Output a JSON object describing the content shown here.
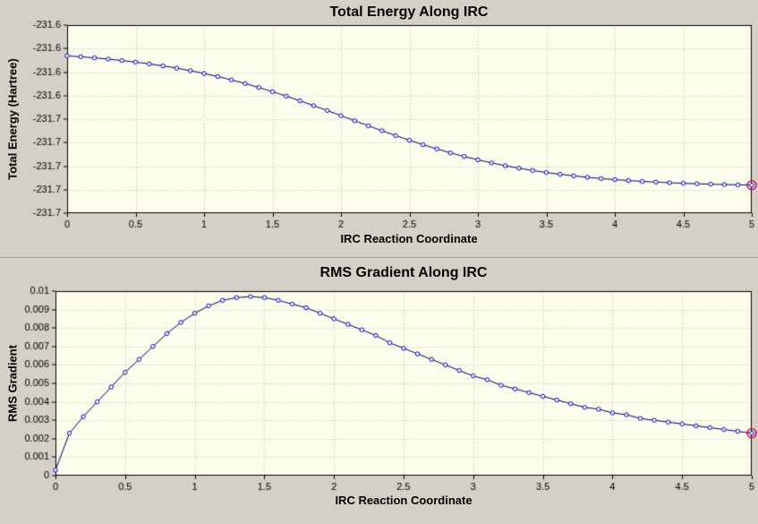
{
  "window": {
    "bg_color": "#d4d0c8"
  },
  "colors": {
    "plot_bg": "#fdfdee",
    "grid": "#bdbdb0",
    "axis": "#000000",
    "text": "#000000",
    "line": "#000066",
    "marker_stroke": "#0000cc",
    "marker_fill": "#ffffff",
    "highlight": "#cc0044"
  },
  "chart_data": [
    {
      "type": "line",
      "title": "Total Energy Along IRC",
      "xlabel": "IRC Reaction Coordinate",
      "ylabel": "Total Energy (Hartree)",
      "xlim": [
        0,
        5
      ],
      "ylim": [
        -231.7,
        -231.6
      ],
      "grid": true,
      "legend": false,
      "marker": "circle",
      "last_point_highlighted": true,
      "x_ticks": [
        0,
        0.5,
        1,
        1.5,
        2,
        2.5,
        3,
        3.5,
        4,
        4.5,
        5
      ],
      "x_tick_labels": [
        "0",
        "0.5",
        "1",
        "1.5",
        "2",
        "2.5",
        "3",
        "3.5",
        "4",
        "4.5",
        "5"
      ],
      "y_ticks": [
        -231.7,
        -231.6875,
        -231.675,
        -231.6625,
        -231.65,
        -231.6375,
        -231.625,
        -231.6125,
        -231.6
      ],
      "y_tick_labels": [
        "-231.7",
        "-231.7",
        "-231.7",
        "-231.7",
        "-231.7",
        "-231.6",
        "-231.6",
        "-231.6",
        "-231.6"
      ],
      "x": [
        0,
        0.1,
        0.2,
        0.3,
        0.4,
        0.5,
        0.6,
        0.7,
        0.8,
        0.9,
        1,
        1.1,
        1.2,
        1.3,
        1.4,
        1.5,
        1.6,
        1.7,
        1.8,
        1.9,
        2,
        2.1,
        2.2,
        2.3,
        2.4,
        2.5,
        2.6,
        2.7,
        2.8,
        2.9,
        3,
        3.1,
        3.2,
        3.3,
        3.4,
        3.5,
        3.6,
        3.7,
        3.8,
        3.9,
        4,
        4.1,
        4.2,
        4.3,
        4.4,
        4.5,
        4.6,
        4.7,
        4.8,
        4.9,
        5
      ],
      "y": [
        -231.61634,
        -231.61684,
        -231.61741,
        -231.61808,
        -231.61885,
        -231.61968,
        -231.62064,
        -231.6217,
        -231.6229,
        -231.62424,
        -231.62572,
        -231.62736,
        -231.62914,
        -231.63108,
        -231.63318,
        -231.6354,
        -231.63777,
        -231.64025,
        -231.64282,
        -231.64546,
        -231.64815,
        -231.65085,
        -231.65354,
        -231.65618,
        -231.65876,
        -231.66124,
        -231.6636,
        -231.66582,
        -231.66792,
        -231.66986,
        -231.67165,
        -231.67328,
        -231.67476,
        -231.67609,
        -231.6773,
        -231.67837,
        -231.67932,
        -231.68015,
        -231.68092,
        -231.6816,
        -231.68216,
        -231.68266,
        -231.68309,
        -231.68348,
        -231.68382,
        -231.68411,
        -231.68437,
        -231.68458,
        -231.68477,
        -231.68494,
        -231.68508
      ]
    },
    {
      "type": "line",
      "title": "RMS Gradient Along IRC",
      "xlabel": "IRC Reaction Coordinate",
      "ylabel": "RMS Gradient",
      "xlim": [
        0,
        5
      ],
      "ylim": [
        0,
        0.01
      ],
      "grid": true,
      "legend": false,
      "marker": "circle",
      "last_point_highlighted": true,
      "x_ticks": [
        0,
        0.5,
        1,
        1.5,
        2,
        2.5,
        3,
        3.5,
        4,
        4.5,
        5
      ],
      "x_tick_labels": [
        "0",
        "0.5",
        "1",
        "1.5",
        "2",
        "2.5",
        "3",
        "3.5",
        "4",
        "4.5",
        "5"
      ],
      "y_ticks": [
        0,
        0.001,
        0.002,
        0.003,
        0.004,
        0.005,
        0.006,
        0.007,
        0.008,
        0.009,
        0.01
      ],
      "y_tick_labels": [
        "0",
        "0.001",
        "0.002",
        "0.003",
        "0.004",
        "0.005",
        "0.006",
        "0.007",
        "0.008",
        "0.009",
        "0.01"
      ],
      "x": [
        0,
        0.1,
        0.2,
        0.3,
        0.4,
        0.5,
        0.6,
        0.7,
        0.8,
        0.9,
        1,
        1.1,
        1.2,
        1.3,
        1.4,
        1.5,
        1.6,
        1.7,
        1.8,
        1.9,
        2,
        2.1,
        2.2,
        2.3,
        2.4,
        2.5,
        2.6,
        2.7,
        2.8,
        2.9,
        3,
        3.1,
        3.2,
        3.3,
        3.4,
        3.5,
        3.6,
        3.7,
        3.8,
        3.9,
        4,
        4.1,
        4.2,
        4.3,
        4.4,
        4.5,
        4.6,
        4.7,
        4.8,
        4.9,
        5
      ],
      "y": [
        0.0003,
        0.0023,
        0.0032,
        0.004,
        0.0048,
        0.0056,
        0.0063,
        0.007,
        0.0077,
        0.0083,
        0.0088,
        0.0092,
        0.0095,
        0.00965,
        0.0097,
        0.00965,
        0.0095,
        0.0093,
        0.0091,
        0.0088,
        0.0085,
        0.0082,
        0.0079,
        0.0076,
        0.0072,
        0.0069,
        0.0066,
        0.0063,
        0.006,
        0.0057,
        0.0054,
        0.0052,
        0.0049,
        0.0047,
        0.0045,
        0.0043,
        0.0041,
        0.0039,
        0.0037,
        0.0036,
        0.0034,
        0.0033,
        0.0031,
        0.003,
        0.0029,
        0.0028,
        0.0027,
        0.0026,
        0.0025,
        0.0024,
        0.0023
      ]
    }
  ]
}
